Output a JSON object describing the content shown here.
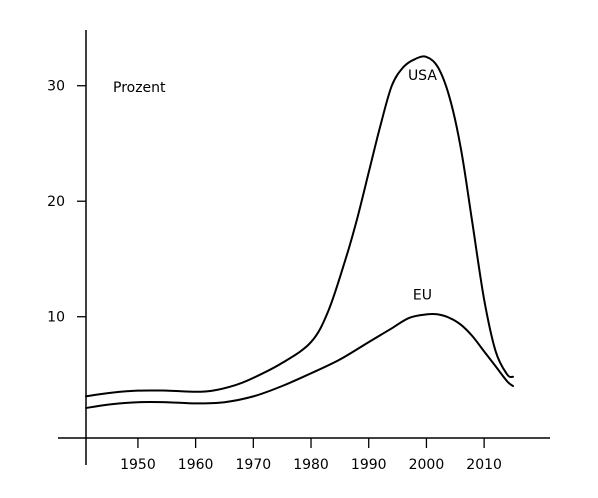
{
  "chart_data": {
    "type": "line",
    "ylabel": "Prozent",
    "x_ticks": [
      1950,
      1960,
      1970,
      1980,
      1990,
      2000,
      2010
    ],
    "y_ticks": [
      10,
      20,
      30
    ],
    "xlim": [
      1941,
      2021
    ],
    "ylim": [
      -0.5,
      35
    ],
    "grid": false,
    "legend": "none",
    "series": [
      {
        "name": "USA",
        "label_position": [
          2000,
          30.5
        ],
        "x": [
          1941,
          1945,
          1950,
          1955,
          1960,
          1963,
          1967,
          1970,
          1975,
          1980,
          1983,
          1986,
          1988,
          1990,
          1992,
          1994,
          1996,
          1998,
          2000,
          2002,
          2004,
          2006,
          2008,
          2010,
          2012,
          2014,
          2015
        ],
        "y": [
          3.1,
          3.4,
          3.6,
          3.6,
          3.5,
          3.6,
          4.1,
          4.7,
          6.0,
          7.8,
          10.5,
          15.0,
          18.5,
          22.5,
          26.5,
          30.0,
          31.6,
          32.3,
          32.5,
          31.6,
          29.0,
          24.5,
          18.0,
          11.5,
          7.0,
          5.0,
          4.8
        ]
      },
      {
        "name": "EU",
        "label_position": [
          2000,
          11.5
        ],
        "x": [
          1941,
          1945,
          1950,
          1955,
          1960,
          1965,
          1970,
          1975,
          1980,
          1985,
          1990,
          1994,
          1997,
          2000,
          2002,
          2004,
          2006,
          2008,
          2010,
          2012,
          2014,
          2015
        ],
        "y": [
          2.1,
          2.4,
          2.6,
          2.6,
          2.5,
          2.6,
          3.1,
          4.0,
          5.1,
          6.3,
          7.8,
          9.0,
          9.9,
          10.2,
          10.2,
          9.9,
          9.3,
          8.3,
          7.0,
          5.7,
          4.4,
          4.0
        ]
      }
    ]
  }
}
